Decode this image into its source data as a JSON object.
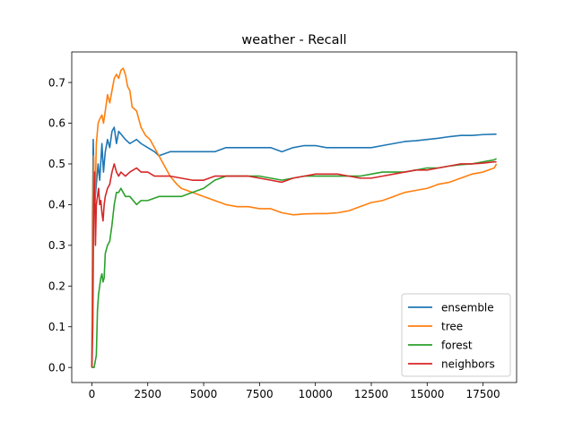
{
  "chart_data": {
    "type": "line",
    "title": "weather - Recall",
    "xlabel": "",
    "ylabel": "",
    "xlim": [
      -900,
      19000
    ],
    "ylim": [
      -0.037,
      0.775
    ],
    "xticks": [
      0,
      2500,
      5000,
      7500,
      10000,
      12500,
      15000,
      17500
    ],
    "yticks": [
      0.0,
      0.1,
      0.2,
      0.3,
      0.4,
      0.5,
      0.6,
      0.7
    ],
    "xtick_labels": [
      "0",
      "2500",
      "5000",
      "7500",
      "10000",
      "12500",
      "15000",
      "17500"
    ],
    "ytick_labels": [
      "0.0",
      "0.1",
      "0.2",
      "0.3",
      "0.4",
      "0.5",
      "0.6",
      "0.7"
    ],
    "grid": false,
    "legend_position": "lower-right",
    "series": [
      {
        "name": "ensemble",
        "color": "#1f77b4",
        "points": [
          [
            0,
            0.0
          ],
          [
            30,
            0.35
          ],
          [
            60,
            0.56
          ],
          [
            120,
            0.4
          ],
          [
            200,
            0.45
          ],
          [
            280,
            0.5
          ],
          [
            350,
            0.46
          ],
          [
            450,
            0.55
          ],
          [
            520,
            0.48
          ],
          [
            600,
            0.53
          ],
          [
            700,
            0.56
          ],
          [
            800,
            0.54
          ],
          [
            900,
            0.58
          ],
          [
            1000,
            0.59
          ],
          [
            1100,
            0.55
          ],
          [
            1200,
            0.58
          ],
          [
            1350,
            0.57
          ],
          [
            1500,
            0.56
          ],
          [
            1700,
            0.55
          ],
          [
            2000,
            0.56
          ],
          [
            2200,
            0.55
          ],
          [
            2500,
            0.54
          ],
          [
            2800,
            0.53
          ],
          [
            3000,
            0.52
          ],
          [
            3500,
            0.53
          ],
          [
            4000,
            0.53
          ],
          [
            4500,
            0.53
          ],
          [
            5000,
            0.53
          ],
          [
            5500,
            0.53
          ],
          [
            6000,
            0.54
          ],
          [
            6500,
            0.54
          ],
          [
            7000,
            0.54
          ],
          [
            7500,
            0.54
          ],
          [
            8000,
            0.54
          ],
          [
            8500,
            0.53
          ],
          [
            9000,
            0.54
          ],
          [
            9500,
            0.545
          ],
          [
            10000,
            0.545
          ],
          [
            10500,
            0.54
          ],
          [
            11000,
            0.54
          ],
          [
            11500,
            0.54
          ],
          [
            12000,
            0.54
          ],
          [
            12500,
            0.54
          ],
          [
            13000,
            0.545
          ],
          [
            13500,
            0.55
          ],
          [
            14000,
            0.555
          ],
          [
            14500,
            0.557
          ],
          [
            15000,
            0.56
          ],
          [
            15500,
            0.563
          ],
          [
            16000,
            0.567
          ],
          [
            16500,
            0.57
          ],
          [
            17000,
            0.57
          ],
          [
            17500,
            0.572
          ],
          [
            18000,
            0.573
          ],
          [
            18100,
            0.573
          ]
        ]
      },
      {
        "name": "tree",
        "color": "#ff7f0e",
        "points": [
          [
            0,
            0.0
          ],
          [
            40,
            0.3
          ],
          [
            80,
            0.52
          ],
          [
            130,
            0.38
          ],
          [
            200,
            0.55
          ],
          [
            280,
            0.6
          ],
          [
            350,
            0.61
          ],
          [
            450,
            0.62
          ],
          [
            520,
            0.6
          ],
          [
            600,
            0.63
          ],
          [
            700,
            0.67
          ],
          [
            800,
            0.65
          ],
          [
            900,
            0.68
          ],
          [
            1000,
            0.71
          ],
          [
            1100,
            0.72
          ],
          [
            1200,
            0.71
          ],
          [
            1300,
            0.73
          ],
          [
            1400,
            0.735
          ],
          [
            1500,
            0.72
          ],
          [
            1600,
            0.69
          ],
          [
            1700,
            0.68
          ],
          [
            1800,
            0.64
          ],
          [
            2000,
            0.63
          ],
          [
            2200,
            0.59
          ],
          [
            2400,
            0.57
          ],
          [
            2600,
            0.56
          ],
          [
            2800,
            0.54
          ],
          [
            3000,
            0.52
          ],
          [
            3200,
            0.5
          ],
          [
            3500,
            0.47
          ],
          [
            3800,
            0.45
          ],
          [
            4000,
            0.44
          ],
          [
            4500,
            0.43
          ],
          [
            5000,
            0.42
          ],
          [
            5500,
            0.41
          ],
          [
            6000,
            0.4
          ],
          [
            6500,
            0.395
          ],
          [
            7000,
            0.395
          ],
          [
            7500,
            0.39
          ],
          [
            8000,
            0.39
          ],
          [
            8500,
            0.38
          ],
          [
            9000,
            0.375
          ],
          [
            9500,
            0.377
          ],
          [
            10000,
            0.378
          ],
          [
            10500,
            0.378
          ],
          [
            11000,
            0.38
          ],
          [
            11500,
            0.385
          ],
          [
            12000,
            0.395
          ],
          [
            12500,
            0.405
          ],
          [
            13000,
            0.41
          ],
          [
            13500,
            0.42
          ],
          [
            14000,
            0.43
          ],
          [
            14500,
            0.435
          ],
          [
            15000,
            0.44
          ],
          [
            15500,
            0.45
          ],
          [
            16000,
            0.455
          ],
          [
            16500,
            0.465
          ],
          [
            17000,
            0.475
          ],
          [
            17500,
            0.48
          ],
          [
            18000,
            0.49
          ],
          [
            18100,
            0.5
          ]
        ]
      },
      {
        "name": "forest",
        "color": "#2ca02c",
        "points": [
          [
            0,
            0.0
          ],
          [
            100,
            0.0
          ],
          [
            200,
            0.03
          ],
          [
            250,
            0.14
          ],
          [
            300,
            0.18
          ],
          [
            350,
            0.2
          ],
          [
            400,
            0.22
          ],
          [
            450,
            0.23
          ],
          [
            500,
            0.21
          ],
          [
            550,
            0.22
          ],
          [
            600,
            0.28
          ],
          [
            700,
            0.3
          ],
          [
            800,
            0.31
          ],
          [
            900,
            0.35
          ],
          [
            1000,
            0.4
          ],
          [
            1100,
            0.43
          ],
          [
            1200,
            0.43
          ],
          [
            1300,
            0.44
          ],
          [
            1500,
            0.42
          ],
          [
            1700,
            0.42
          ],
          [
            2000,
            0.4
          ],
          [
            2200,
            0.41
          ],
          [
            2500,
            0.41
          ],
          [
            3000,
            0.42
          ],
          [
            3500,
            0.42
          ],
          [
            4000,
            0.42
          ],
          [
            4500,
            0.43
          ],
          [
            5000,
            0.44
          ],
          [
            5500,
            0.46
          ],
          [
            6000,
            0.47
          ],
          [
            6500,
            0.47
          ],
          [
            7000,
            0.47
          ],
          [
            7500,
            0.47
          ],
          [
            8000,
            0.465
          ],
          [
            8500,
            0.46
          ],
          [
            9000,
            0.465
          ],
          [
            9500,
            0.47
          ],
          [
            10000,
            0.47
          ],
          [
            10500,
            0.47
          ],
          [
            11000,
            0.47
          ],
          [
            11500,
            0.47
          ],
          [
            12000,
            0.47
          ],
          [
            12500,
            0.475
          ],
          [
            13000,
            0.48
          ],
          [
            13500,
            0.48
          ],
          [
            14000,
            0.48
          ],
          [
            14500,
            0.485
          ],
          [
            15000,
            0.49
          ],
          [
            15500,
            0.49
          ],
          [
            16000,
            0.495
          ],
          [
            16500,
            0.498
          ],
          [
            17000,
            0.5
          ],
          [
            17500,
            0.505
          ],
          [
            18000,
            0.51
          ],
          [
            18100,
            0.513
          ]
        ]
      },
      {
        "name": "neighbors",
        "color": "#d62728",
        "points": [
          [
            0,
            0.0
          ],
          [
            40,
            0.1
          ],
          [
            80,
            0.4
          ],
          [
            120,
            0.48
          ],
          [
            160,
            0.3
          ],
          [
            200,
            0.4
          ],
          [
            250,
            0.42
          ],
          [
            300,
            0.44
          ],
          [
            350,
            0.4
          ],
          [
            400,
            0.41
          ],
          [
            450,
            0.38
          ],
          [
            500,
            0.36
          ],
          [
            550,
            0.4
          ],
          [
            600,
            0.42
          ],
          [
            700,
            0.44
          ],
          [
            800,
            0.45
          ],
          [
            900,
            0.48
          ],
          [
            1000,
            0.5
          ],
          [
            1100,
            0.48
          ],
          [
            1200,
            0.47
          ],
          [
            1300,
            0.48
          ],
          [
            1500,
            0.47
          ],
          [
            1700,
            0.48
          ],
          [
            2000,
            0.49
          ],
          [
            2200,
            0.48
          ],
          [
            2500,
            0.48
          ],
          [
            2800,
            0.47
          ],
          [
            3000,
            0.47
          ],
          [
            3500,
            0.47
          ],
          [
            4000,
            0.465
          ],
          [
            4500,
            0.46
          ],
          [
            5000,
            0.46
          ],
          [
            5500,
            0.47
          ],
          [
            6000,
            0.47
          ],
          [
            6500,
            0.47
          ],
          [
            7000,
            0.47
          ],
          [
            7500,
            0.465
          ],
          [
            8000,
            0.46
          ],
          [
            8500,
            0.455
          ],
          [
            9000,
            0.465
          ],
          [
            9500,
            0.47
          ],
          [
            10000,
            0.475
          ],
          [
            10500,
            0.475
          ],
          [
            11000,
            0.475
          ],
          [
            11500,
            0.47
          ],
          [
            12000,
            0.465
          ],
          [
            12500,
            0.465
          ],
          [
            13000,
            0.47
          ],
          [
            13500,
            0.475
          ],
          [
            14000,
            0.48
          ],
          [
            14500,
            0.485
          ],
          [
            15000,
            0.485
          ],
          [
            15500,
            0.49
          ],
          [
            16000,
            0.495
          ],
          [
            16500,
            0.5
          ],
          [
            17000,
            0.5
          ],
          [
            17500,
            0.502
          ],
          [
            18000,
            0.505
          ],
          [
            18100,
            0.505
          ]
        ]
      }
    ]
  }
}
